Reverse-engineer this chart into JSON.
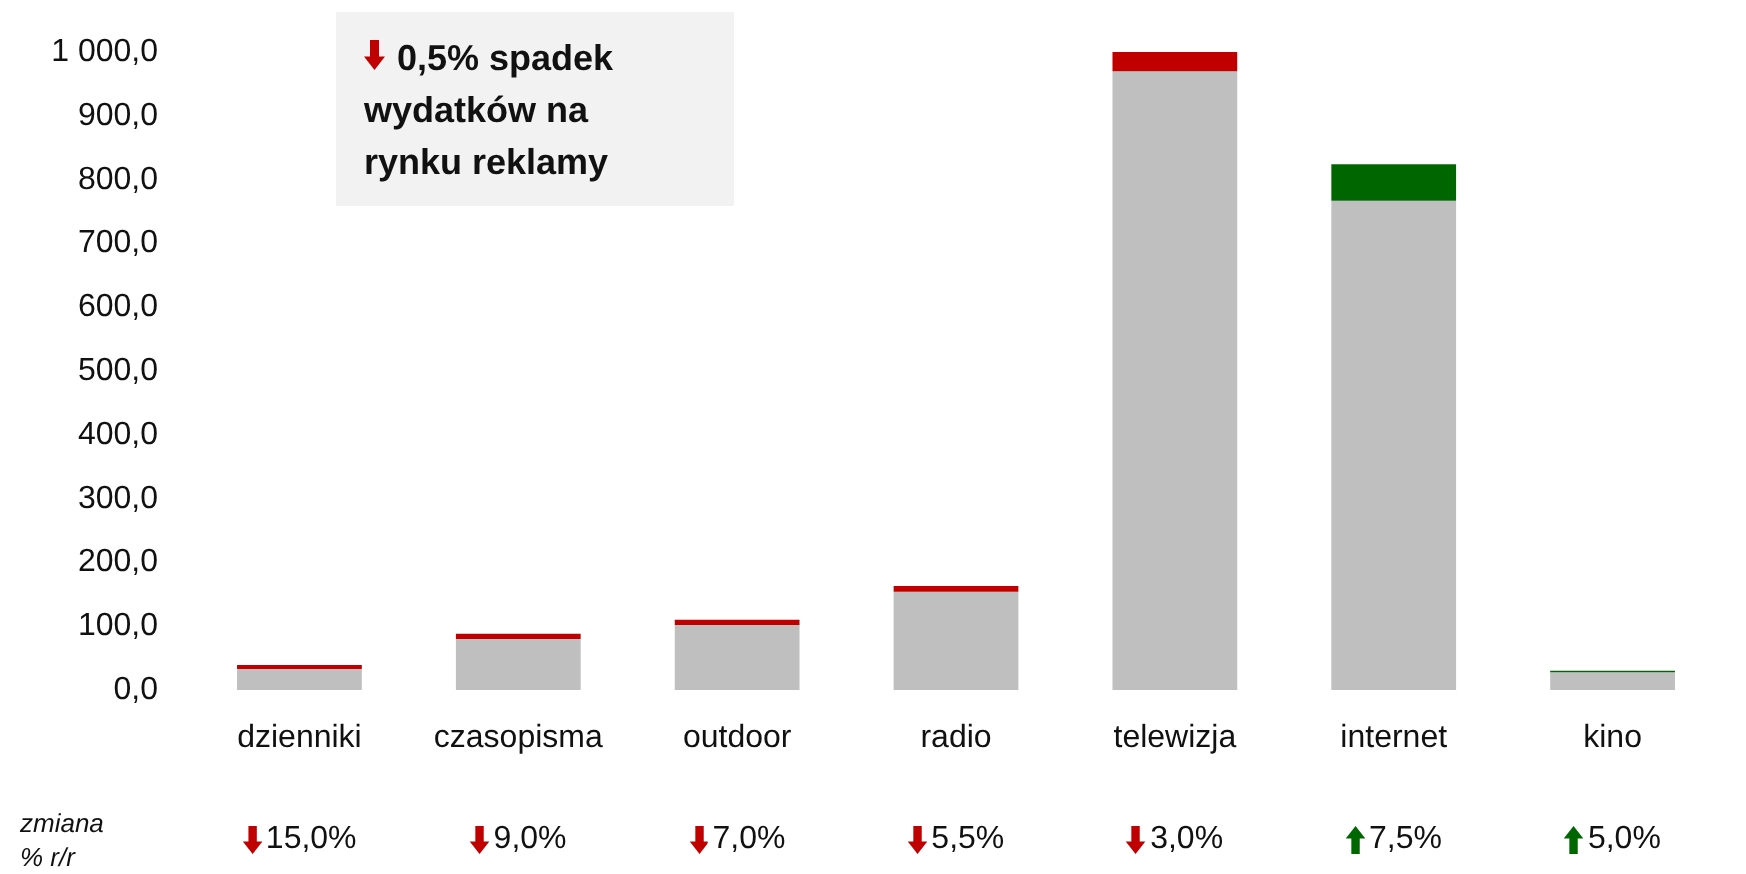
{
  "chart_data": {
    "type": "bar",
    "stacked": true,
    "categories": [
      "dzienniki",
      "czasopisma",
      "outdoor",
      "radio",
      "telewizja",
      "internet",
      "kino"
    ],
    "series": [
      {
        "color": "#bfbfbf",
        "values": [
          33,
          80,
          102,
          154,
          970,
          767,
          28
        ]
      },
      {
        "color": "#c00000",
        "values": [
          6,
          8,
          8,
          9,
          30,
          null,
          null
        ]
      },
      {
        "color": "#006600",
        "values": [
          null,
          null,
          null,
          null,
          null,
          57,
          2
        ]
      }
    ],
    "ylim": [
      0,
      1000
    ],
    "yticks": [
      {
        "value": 0,
        "label": "0,0"
      },
      {
        "value": 100,
        "label": "100,0"
      },
      {
        "value": 200,
        "label": "200,0"
      },
      {
        "value": 300,
        "label": "300,0"
      },
      {
        "value": 400,
        "label": "400,0"
      },
      {
        "value": 500,
        "label": "500,0"
      },
      {
        "value": 600,
        "label": "600,0"
      },
      {
        "value": 700,
        "label": "700,0"
      },
      {
        "value": 800,
        "label": "800,0"
      },
      {
        "value": 900,
        "label": "900,0"
      },
      {
        "value": 1000,
        "label": "1 000,0"
      }
    ],
    "grid": false,
    "annotations": [
      "0,5% spadek wydatków na rynku reklamy",
      "zmiana\n% r/r",
      "15,0%",
      "9,0%",
      "7,0%",
      "5,5%",
      "3,0%",
      "7,5%",
      "5,0%"
    ]
  }
}
